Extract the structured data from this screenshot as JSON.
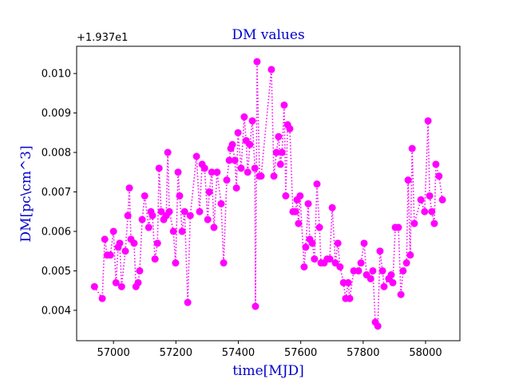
{
  "chart_data": {
    "type": "line",
    "title": "DM values",
    "xlabel": "time[MJD]",
    "ylabel": "DM[pc\\cm^3]",
    "y_offset_text": "+1.937e1",
    "x": [
      56939,
      56964,
      56972,
      56980,
      56990,
      57000,
      57008,
      57015,
      57020,
      57026,
      57038,
      57046,
      57051,
      57056,
      57066,
      57072,
      57079,
      57084,
      57092,
      57100,
      57113,
      57120,
      57125,
      57133,
      57141,
      57146,
      57153,
      57161,
      57169,
      57174,
      57179,
      57192,
      57199,
      57207,
      57212,
      57220,
      57228,
      57238,
      57246,
      57266,
      57276,
      57284,
      57292,
      57302,
      57307,
      57315,
      57322,
      57332,
      57345,
      57353,
      57363,
      57371,
      57376,
      57381,
      57389,
      57394,
      57399,
      57409,
      57419,
      57425,
      57430,
      57437,
      57445,
      57453,
      57455,
      57460,
      57468,
      57473,
      57506,
      57514,
      57522,
      57529,
      57535,
      57540,
      57547,
      57552,
      57558,
      57565,
      57575,
      57583,
      57588,
      57593,
      57598,
      57611,
      57616,
      57624,
      57629,
      57637,
      57644,
      57652,
      57660,
      57665,
      57675,
      57685,
      57693,
      57701,
      57711,
      57719,
      57726,
      57737,
      57744,
      57752,
      57757,
      57770,
      57785,
      57793,
      57803,
      57811,
      57824,
      57831,
      57839,
      57847,
      57854,
      57862,
      57867,
      57882,
      57890,
      57895,
      57903,
      57913,
      57921,
      57928,
      57939,
      57944,
      57951,
      57957,
      57964,
      57985,
      57997,
      58008,
      58013,
      58020,
      58028,
      58033,
      58043,
      58054
    ],
    "series": [
      {
        "name": "DM",
        "color": "#ff00ff",
        "values": [
          0.0046,
          0.0043,
          0.0058,
          0.0054,
          0.0054,
          0.006,
          0.0047,
          0.0056,
          0.0057,
          0.0046,
          0.0055,
          0.0064,
          0.0071,
          0.0058,
          0.0057,
          0.0046,
          0.0047,
          0.005,
          0.0063,
          0.0069,
          0.0061,
          0.0065,
          0.0064,
          0.0053,
          0.0057,
          0.0076,
          0.0065,
          0.0063,
          0.0064,
          0.008,
          0.0065,
          0.006,
          0.0052,
          0.0075,
          0.0069,
          0.006,
          0.0065,
          0.0042,
          0.0064,
          0.0079,
          0.0065,
          0.0077,
          0.0076,
          0.0063,
          0.007,
          0.0075,
          0.0061,
          0.0075,
          0.0067,
          0.0052,
          0.0073,
          0.0078,
          0.0081,
          0.0082,
          0.0078,
          0.0071,
          0.0085,
          0.0076,
          0.0089,
          0.0083,
          0.0075,
          0.0082,
          0.0088,
          0.0076,
          0.0041,
          0.0103,
          0.0074,
          0.0074,
          0.0101,
          0.0074,
          0.008,
          0.0084,
          0.0077,
          0.008,
          0.0092,
          0.0069,
          0.0087,
          0.0086,
          0.0065,
          0.0065,
          0.0068,
          0.0062,
          0.0069,
          0.0051,
          0.0056,
          0.0067,
          0.0058,
          0.0057,
          0.0053,
          0.0072,
          0.0061,
          0.0052,
          0.0052,
          0.0053,
          0.0053,
          0.0066,
          0.0052,
          0.0057,
          0.0051,
          0.0047,
          0.0043,
          0.0047,
          0.0043,
          0.005,
          0.005,
          0.0052,
          0.0057,
          0.0049,
          0.0048,
          0.005,
          0.0037,
          0.0036,
          0.0055,
          0.005,
          0.0046,
          0.0048,
          0.0049,
          0.0047,
          0.0061,
          0.0061,
          0.0044,
          0.005,
          0.0052,
          0.0073,
          0.0054,
          0.0081,
          0.0062,
          0.0068,
          0.0065,
          0.0088,
          0.0069,
          0.0065,
          0.0062,
          0.0077,
          0.0074,
          0.0068
        ]
      }
    ],
    "xlim": [
      56882,
      58110
    ],
    "ylim": [
      0.00323,
      0.01069
    ],
    "xticks": [
      57000,
      57200,
      57400,
      57600,
      57800,
      58000
    ],
    "yticks": [
      0.004,
      0.005,
      0.006,
      0.007,
      0.008,
      0.009,
      {
        "value": 0.01,
        "label": "0.010"
      }
    ],
    "grid": false
  }
}
